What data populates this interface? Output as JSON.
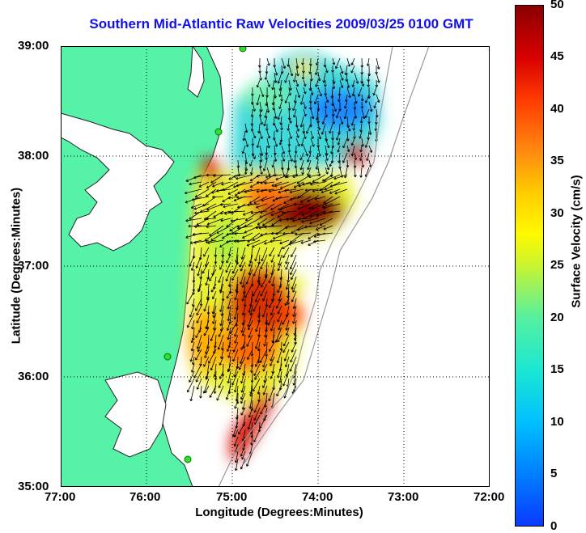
{
  "title": "Southern Mid-Atlantic Raw Velocities 2009/03/25 0100 GMT",
  "axes": {
    "xlabel": "Longitude (Degrees:Minutes)",
    "ylabel": "Latitude (Degrees:Minutes)",
    "x_ticks": [
      "77:00",
      "76:00",
      "75:00",
      "74:00",
      "73:00",
      "72:00"
    ],
    "y_ticks": [
      "39:00",
      "38:00",
      "37:00",
      "36:00",
      "35:00"
    ]
  },
  "colorbar": {
    "label": "Surface Velocity (cm/s)",
    "ticks": [
      "50",
      "45",
      "40",
      "35",
      "30",
      "25",
      "20",
      "15",
      "10",
      "5",
      "0"
    ]
  },
  "colors": {
    "land": "#55f2a8",
    "title": "#1010ee",
    "high_speed": "#8a0000",
    "low_speed": "#0a3aff"
  }
}
